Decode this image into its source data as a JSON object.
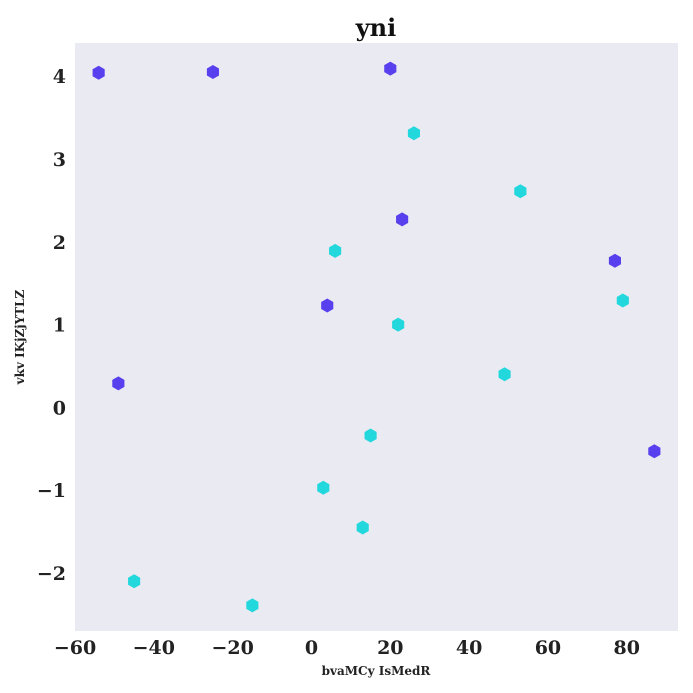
{
  "chart_data": {
    "type": "scatter",
    "title": "yni",
    "xlabel": "bvaMCy IsMedR",
    "ylabel": "vkv IKjZjYTLZ",
    "xlim": [
      -60,
      93
    ],
    "ylim": [
      -2.7,
      4.4
    ],
    "xticks": [
      -60,
      -40,
      -20,
      0,
      20,
      40,
      60,
      80
    ],
    "xtick_labels": [
      "−60",
      "−40",
      "−20",
      "0",
      "20",
      "40",
      "60",
      "80"
    ],
    "yticks": [
      -2,
      -1,
      0,
      1,
      2,
      3,
      4
    ],
    "ytick_labels": [
      "−2",
      "−1",
      "0",
      "1",
      "2",
      "3",
      "4"
    ],
    "grid": false,
    "background": "#eaeaf2",
    "marker": "hexagon",
    "series": [
      {
        "color": "#5840ee",
        "points": [
          {
            "x": -54,
            "y": 4.04
          },
          {
            "x": -25,
            "y": 4.05
          },
          {
            "x": 20,
            "y": 4.09
          },
          {
            "x": 23,
            "y": 2.27
          },
          {
            "x": 77,
            "y": 1.77
          },
          {
            "x": 4,
            "y": 1.23
          },
          {
            "x": -49,
            "y": 0.29
          },
          {
            "x": 87,
            "y": -0.53
          }
        ]
      },
      {
        "color": "#22d8dc",
        "points": [
          {
            "x": 26,
            "y": 3.31
          },
          {
            "x": 53,
            "y": 2.61
          },
          {
            "x": 6,
            "y": 1.89
          },
          {
            "x": 79,
            "y": 1.29
          },
          {
            "x": 22,
            "y": 1.0
          },
          {
            "x": 49,
            "y": 0.4
          },
          {
            "x": 15,
            "y": -0.34
          },
          {
            "x": 3,
            "y": -0.97
          },
          {
            "x": 13,
            "y": -1.45
          },
          {
            "x": -45,
            "y": -2.1
          },
          {
            "x": -15,
            "y": -2.39
          }
        ]
      }
    ]
  }
}
